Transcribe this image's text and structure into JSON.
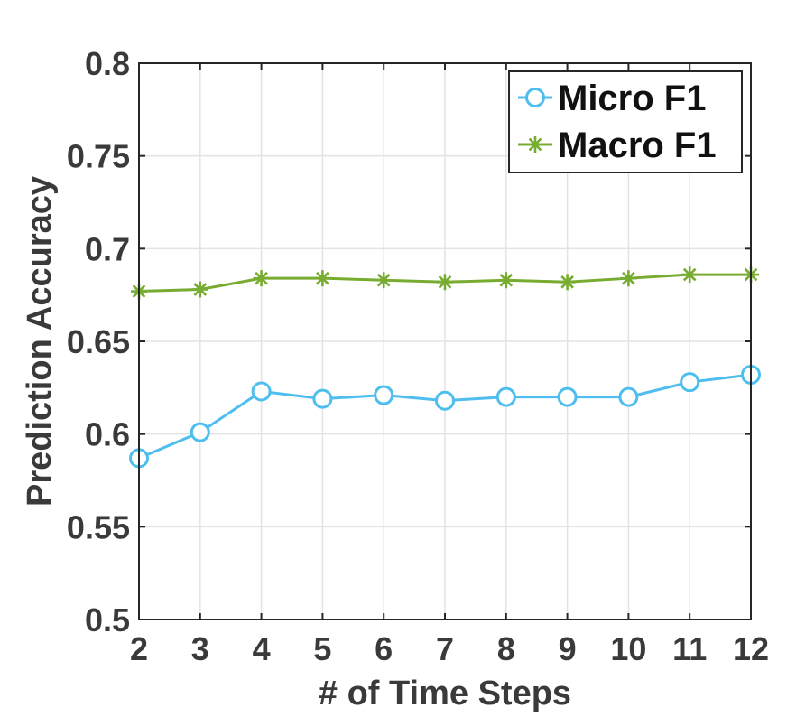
{
  "chart_data": {
    "type": "line",
    "title": "",
    "xlabel": "# of Time Steps",
    "ylabel": "Prediction Accuracy",
    "x": [
      2,
      3,
      4,
      5,
      6,
      7,
      8,
      9,
      10,
      11,
      12
    ],
    "xlim": [
      2,
      12
    ],
    "ylim": [
      0.5,
      0.8
    ],
    "xticks": [
      "2",
      "3",
      "4",
      "5",
      "6",
      "7",
      "8",
      "9",
      "10",
      "11",
      "12"
    ],
    "yticks": [
      "0.5",
      "0.55",
      "0.6",
      "0.65",
      "0.7",
      "0.75",
      "0.8"
    ],
    "ytick_values": [
      0.5,
      0.55,
      0.6,
      0.65,
      0.7,
      0.75,
      0.8
    ],
    "grid": true,
    "legend_position": "top-right",
    "series": [
      {
        "name": "Micro F1",
        "marker": "circle",
        "color": "#4DBEEE",
        "values": [
          0.587,
          0.601,
          0.623,
          0.619,
          0.621,
          0.618,
          0.62,
          0.62,
          0.62,
          0.628,
          0.632
        ]
      },
      {
        "name": "Macro F1",
        "marker": "asterisk",
        "color": "#77AC30",
        "values": [
          0.677,
          0.678,
          0.684,
          0.684,
          0.683,
          0.682,
          0.683,
          0.682,
          0.684,
          0.686,
          0.686
        ]
      }
    ]
  }
}
